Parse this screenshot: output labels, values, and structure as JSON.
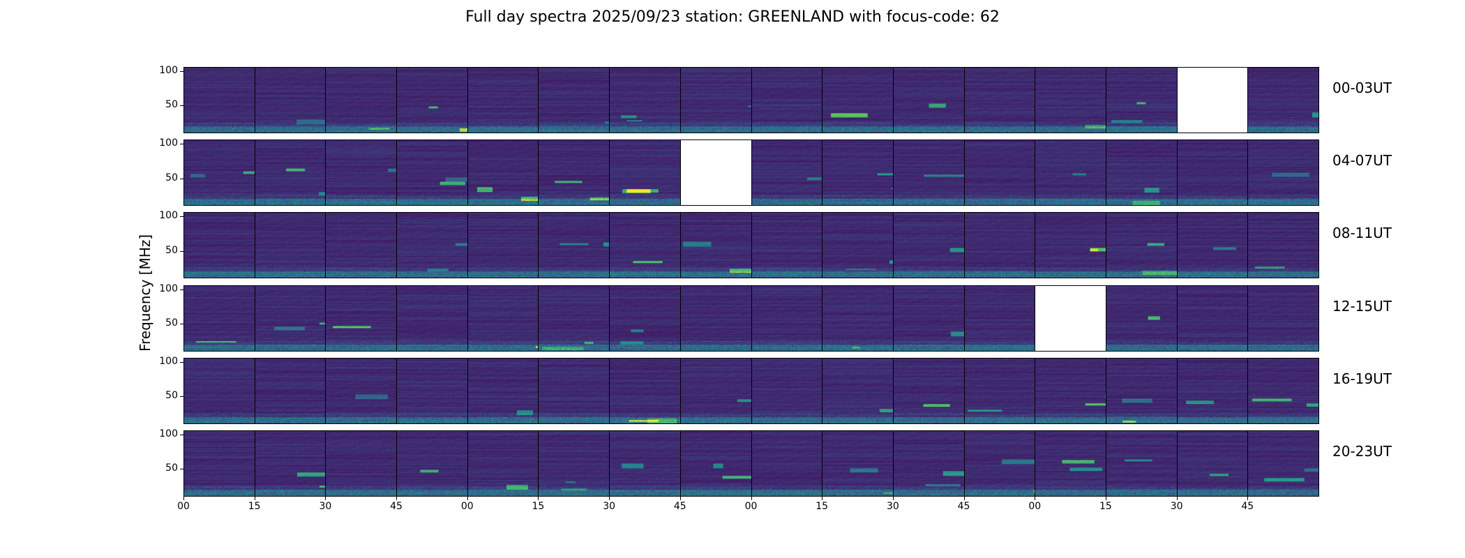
{
  "chart_data": {
    "type": "heatmap",
    "title": "Full day spectra 2025/09/23 station: GREENLAND with focus-code: 62",
    "ylabel": "Frequency [MHz]",
    "xlabel": "",
    "ylim": [
      10,
      106
    ],
    "yticks": [
      "50",
      "100"
    ],
    "ytick_values": [
      50,
      100
    ],
    "xticks": [
      "00",
      "15",
      "30",
      "45",
      "00",
      "15",
      "30",
      "45",
      "00",
      "15",
      "30",
      "45",
      "00",
      "15",
      "30",
      "45"
    ],
    "colormap": "viridis",
    "columns_per_row": 16,
    "rows": [
      {
        "label": "00-03UT",
        "missing_panels": [
          14
        ]
      },
      {
        "label": "04-07UT",
        "missing_panels": [
          7
        ]
      },
      {
        "label": "08-11UT",
        "missing_panels": []
      },
      {
        "label": "12-15UT",
        "missing_panels": [
          12
        ]
      },
      {
        "label": "16-19UT",
        "missing_panels": []
      },
      {
        "label": "20-23UT",
        "missing_panels": []
      }
    ]
  }
}
